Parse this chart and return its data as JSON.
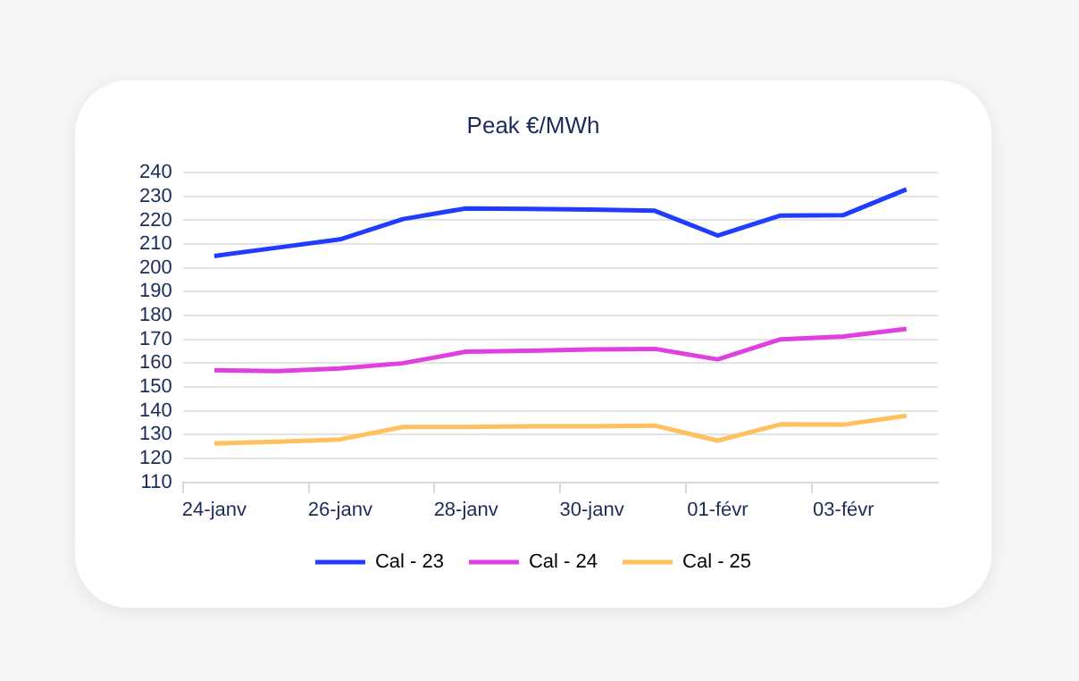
{
  "chart_data": {
    "type": "line",
    "title": "Peak €/MWh",
    "categories": [
      "24-janv",
      null,
      "26-janv",
      null,
      "28-janv",
      null,
      "30-janv",
      null,
      "01-févr",
      null,
      "03-févr",
      null
    ],
    "series": [
      {
        "name": "Cal - 23",
        "color": "#1f3cff",
        "values": [
          205,
          208.5,
          212,
          220.5,
          225,
          224.8,
          224.5,
          224,
          213.6,
          222,
          222.2,
          233
        ]
      },
      {
        "name": "Cal - 24",
        "color": "#e040e0",
        "values": [
          157,
          156.7,
          157.8,
          160,
          164.8,
          165.2,
          165.8,
          166,
          161.6,
          170,
          171.2,
          174.4
        ]
      },
      {
        "name": "Cal - 25",
        "color": "#ffc060",
        "values": [
          126.3,
          127,
          128,
          133.2,
          133.2,
          133.5,
          133.5,
          133.8,
          127.5,
          134.3,
          134.2,
          137.9
        ]
      }
    ],
    "ylim": [
      110,
      240
    ],
    "yticks": [
      110,
      120,
      130,
      140,
      150,
      160,
      170,
      180,
      190,
      200,
      210,
      220,
      230,
      240
    ],
    "grid": "y",
    "legend": "bottom",
    "marker": "none",
    "line_style": "solid"
  }
}
